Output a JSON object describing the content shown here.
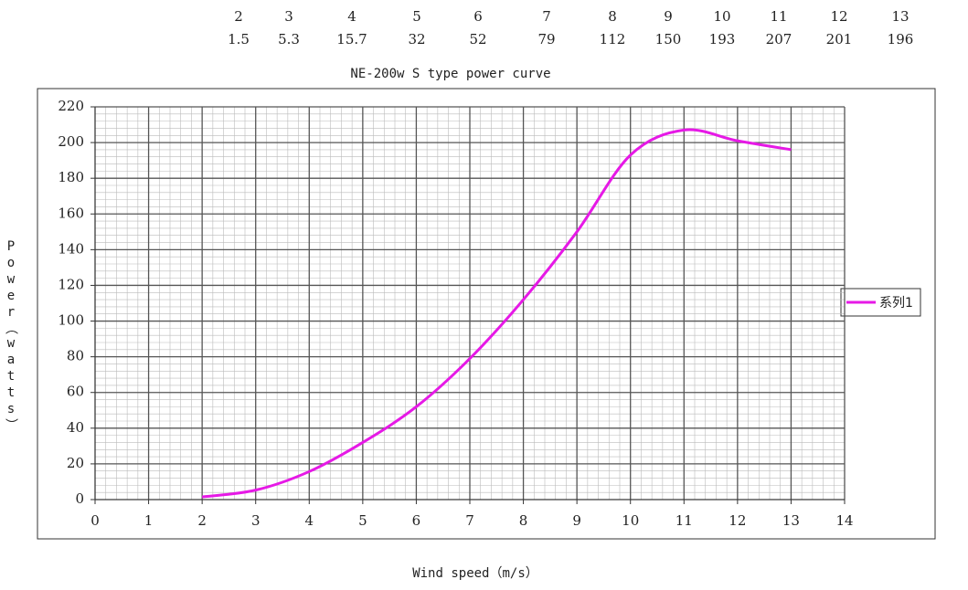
{
  "chart_data": {
    "type": "line",
    "title": "NE-200w S type power curve",
    "x_label": "Wind speed（m/s）",
    "y_label": "Power（watts）",
    "x": [
      2,
      3,
      4,
      5,
      6,
      7,
      8,
      9,
      10,
      11,
      12,
      13
    ],
    "series": [
      {
        "name": "系列1",
        "color": "#e619e6",
        "values": [
          1.5,
          5.3,
          15.7,
          32,
          52,
          79,
          112,
          150,
          193,
          207,
          201,
          196
        ]
      }
    ],
    "xlim": [
      0,
      14
    ],
    "xticks": [
      0,
      1,
      2,
      3,
      4,
      5,
      6,
      7,
      8,
      9,
      10,
      11,
      12,
      13,
      14
    ],
    "ylim": [
      0,
      220
    ],
    "yticks": [
      0,
      20,
      40,
      60,
      80,
      100,
      120,
      140,
      160,
      180,
      200,
      220
    ],
    "grid": true,
    "minor_grid": true,
    "legend": "right"
  }
}
